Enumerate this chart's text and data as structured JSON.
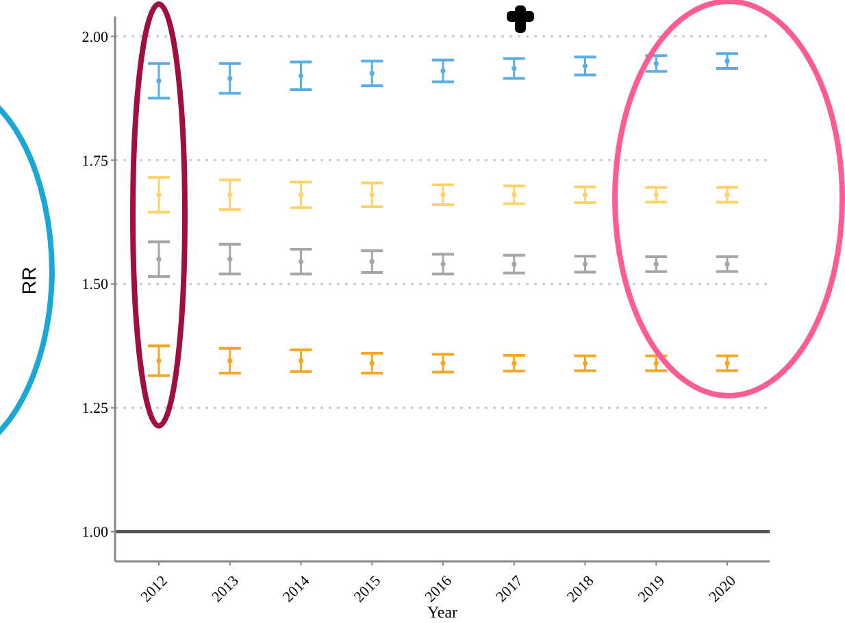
{
  "chart_data": {
    "type": "scatter",
    "xlabel": "Year",
    "ylabel": "RR",
    "categories": [
      "2012",
      "2013",
      "2014",
      "2015",
      "2016",
      "2017",
      "2018",
      "2019",
      "2020"
    ],
    "series": [
      {
        "color": "#5aaee8",
        "values": [
          1.91,
          1.915,
          1.92,
          1.925,
          1.93,
          1.935,
          1.94,
          1.945,
          1.95
        ],
        "errors": [
          0.035,
          0.03,
          0.028,
          0.025,
          0.022,
          0.02,
          0.018,
          0.016,
          0.015
        ]
      },
      {
        "color": "#fdd36a",
        "values": [
          1.68,
          1.68,
          1.68,
          1.68,
          1.68,
          1.68,
          1.68,
          1.68,
          1.68
        ],
        "errors": [
          0.035,
          0.03,
          0.026,
          0.024,
          0.02,
          0.018,
          0.016,
          0.015,
          0.015
        ]
      },
      {
        "color": "#a6a6a6",
        "values": [
          1.55,
          1.55,
          1.545,
          1.545,
          1.54,
          1.54,
          1.54,
          1.54,
          1.54
        ],
        "errors": [
          0.035,
          0.03,
          0.025,
          0.022,
          0.02,
          0.018,
          0.016,
          0.015,
          0.015
        ]
      },
      {
        "color": "#f5a623",
        "values": [
          1.345,
          1.345,
          1.345,
          1.34,
          1.34,
          1.34,
          1.34,
          1.34,
          1.34
        ],
        "errors": [
          0.03,
          0.025,
          0.022,
          0.02,
          0.018,
          0.016,
          0.015,
          0.015,
          0.015
        ]
      }
    ],
    "ylim": [
      0.94,
      2.04
    ],
    "yticks": [
      {
        "value": 1,
        "label": "1.00"
      },
      {
        "value": 1.25,
        "label": "1.25"
      },
      {
        "value": 1.5,
        "label": "1.50"
      },
      {
        "value": 1.75,
        "label": "1.75"
      },
      {
        "value": 2,
        "label": "2.00"
      }
    ],
    "grid": "y",
    "marker": "circle",
    "ref_lines": [
      {
        "axis": "y",
        "value": 1,
        "color": "#555555"
      }
    ]
  }
}
